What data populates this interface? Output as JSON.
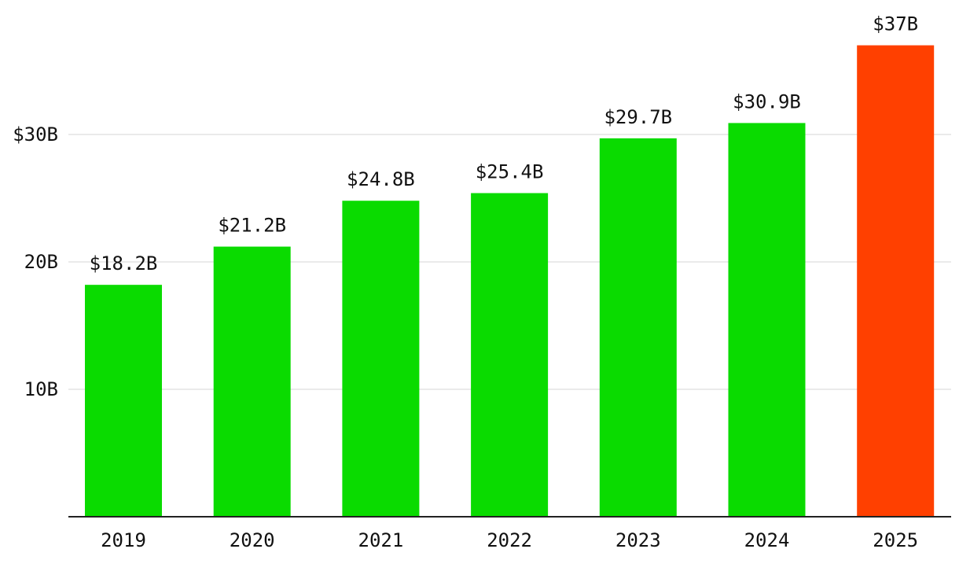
{
  "chart_data": {
    "type": "bar",
    "categories": [
      "2019",
      "2020",
      "2021",
      "2022",
      "2023",
      "2024",
      "2025"
    ],
    "values": [
      18.2,
      21.2,
      24.8,
      25.4,
      29.7,
      30.9,
      37
    ],
    "data_labels": [
      "$18.2B",
      "$21.2B",
      "$24.8B",
      "$25.4B",
      "$29.7B",
      "$30.9B",
      "$37B"
    ],
    "bar_colors": [
      "#0adb00",
      "#0adb00",
      "#0adb00",
      "#0adb00",
      "#0adb00",
      "#0adb00",
      "#ff4000"
    ],
    "y_ticks": [
      10,
      20,
      30
    ],
    "y_tick_labels": [
      "10B",
      "20B",
      "$30B"
    ],
    "ylim": [
      0,
      40
    ],
    "grid": true,
    "title": "",
    "xlabel": "",
    "ylabel": ""
  }
}
